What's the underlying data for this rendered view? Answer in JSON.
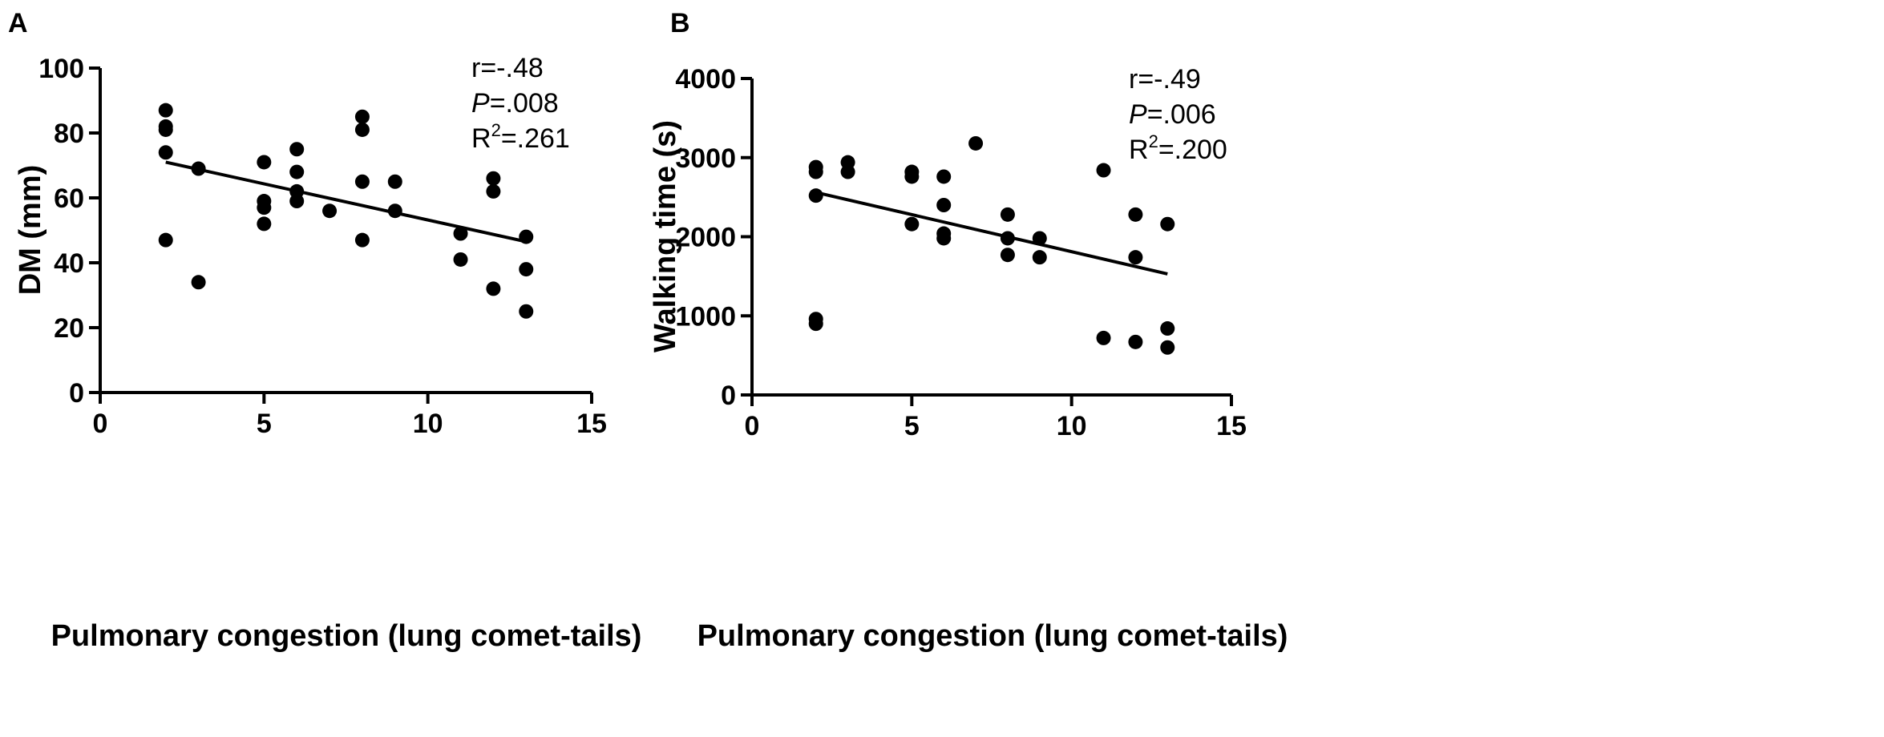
{
  "chart_data": [
    {
      "type": "scatter",
      "panel_label": "A",
      "xlabel": "Pulmonary congestion (lung comet-tails)",
      "ylabel": "DM (mm)",
      "xlim": [
        0,
        15
      ],
      "ylim": [
        0,
        100
      ],
      "xticks": [
        0,
        5,
        10,
        15
      ],
      "yticks": [
        0,
        20,
        40,
        60,
        80,
        100
      ],
      "stats": {
        "r_text": "r=-.48",
        "p_letter": "P",
        "p_value": "=.008",
        "r2_base": "R",
        "r2_sup": "2",
        "r2_value": "=.261"
      },
      "points": [
        [
          2,
          87
        ],
        [
          2,
          82
        ],
        [
          2,
          81
        ],
        [
          2,
          74
        ],
        [
          2,
          47
        ],
        [
          3,
          69
        ],
        [
          3,
          34
        ],
        [
          5,
          71
        ],
        [
          5,
          59
        ],
        [
          5,
          57
        ],
        [
          5,
          52
        ],
        [
          6,
          75
        ],
        [
          6,
          68
        ],
        [
          6,
          62
        ],
        [
          6,
          59
        ],
        [
          7,
          56
        ],
        [
          8,
          85
        ],
        [
          8,
          81
        ],
        [
          8,
          65
        ],
        [
          8,
          47
        ],
        [
          9,
          65
        ],
        [
          9,
          56
        ],
        [
          11,
          49
        ],
        [
          11,
          41
        ],
        [
          12,
          66
        ],
        [
          12,
          62
        ],
        [
          12,
          32
        ],
        [
          13,
          48
        ],
        [
          13,
          38
        ],
        [
          13,
          25
        ]
      ],
      "regression": {
        "x": [
          2,
          13
        ],
        "y": [
          71,
          46.5
        ]
      },
      "grid": false
    },
    {
      "type": "scatter",
      "panel_label": "B",
      "xlabel": "Pulmonary congestion (lung comet-tails)",
      "ylabel": "Walking time (s)",
      "xlim": [
        0,
        15
      ],
      "ylim": [
        0,
        4000
      ],
      "xticks": [
        0,
        5,
        10,
        15
      ],
      "yticks": [
        0,
        1000,
        2000,
        3000,
        4000
      ],
      "stats": {
        "r_text": "r=-.49",
        "p_letter": "P",
        "p_value": "=.006",
        "r2_base": "R",
        "r2_sup": "2",
        "r2_value": "=.200"
      },
      "points": [
        [
          2,
          2880
        ],
        [
          2,
          2820
        ],
        [
          2,
          2520
        ],
        [
          2,
          960
        ],
        [
          2,
          900
        ],
        [
          3,
          2940
        ],
        [
          3,
          2820
        ],
        [
          5,
          2820
        ],
        [
          5,
          2760
        ],
        [
          5,
          2160
        ],
        [
          6,
          2760
        ],
        [
          6,
          2400
        ],
        [
          6,
          2040
        ],
        [
          6,
          1980
        ],
        [
          7,
          3180
        ],
        [
          8,
          2280
        ],
        [
          8,
          1980
        ],
        [
          8,
          1770
        ],
        [
          9,
          1980
        ],
        [
          9,
          1740
        ],
        [
          11,
          2840
        ],
        [
          11,
          720
        ],
        [
          12,
          2280
        ],
        [
          12,
          1740
        ],
        [
          12,
          670
        ],
        [
          13,
          2160
        ],
        [
          13,
          840
        ],
        [
          13,
          600
        ]
      ],
      "regression": {
        "x": [
          2,
          13
        ],
        "y": [
          2560,
          1530
        ]
      },
      "grid": false
    }
  ]
}
